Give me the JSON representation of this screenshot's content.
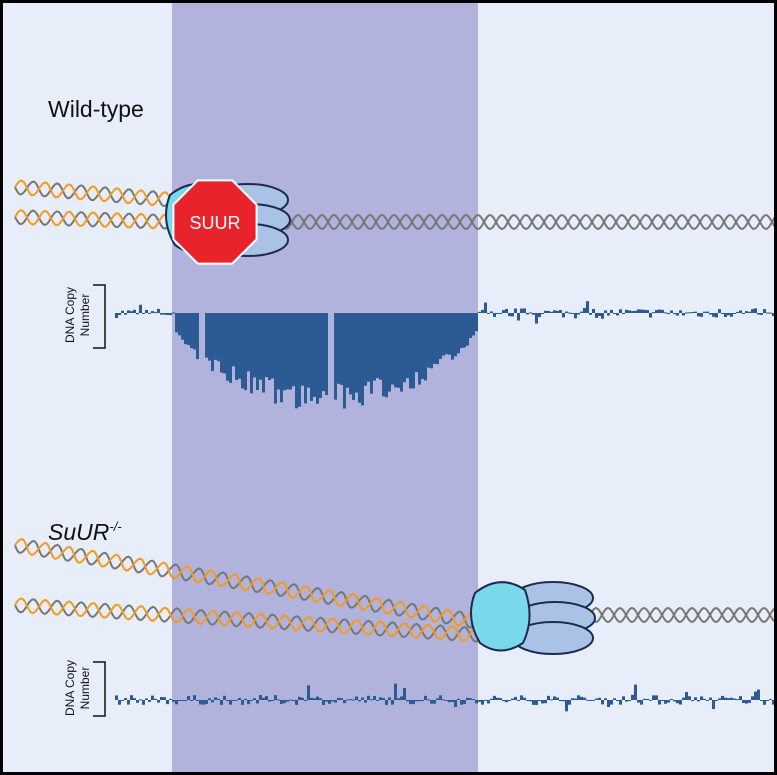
{
  "top": {
    "label": "Wild-type",
    "stop_sign": "SUUR",
    "track_label": [
      "DNA Copy",
      "Number"
    ]
  },
  "bottom": {
    "label": "SuUR",
    "label_superscript": "-/-",
    "track_label": [
      "DNA Copy",
      "Number"
    ]
  }
}
